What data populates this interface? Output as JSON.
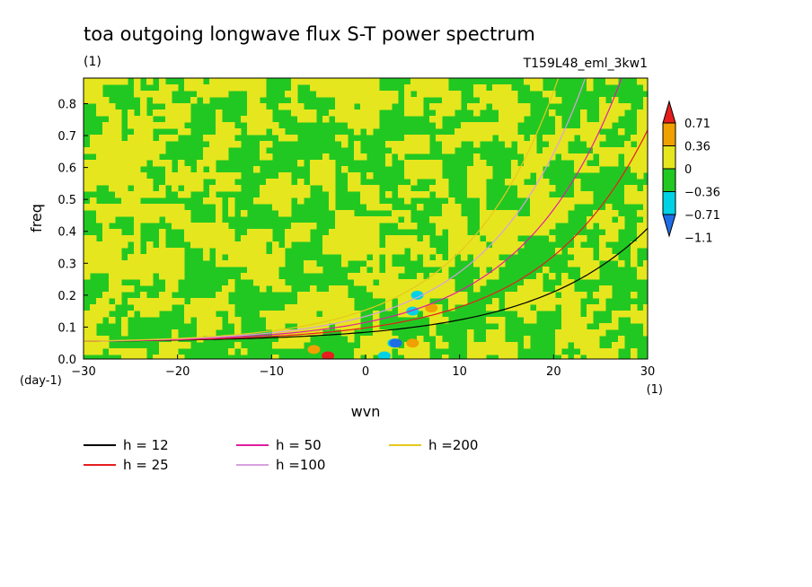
{
  "chart_data": {
    "type": "heatmap",
    "title": "toa outgoing longwave flux S-T power spectrum",
    "subtitle_left": "(1)",
    "subtitle_right": "T159L48_eml_3kw1",
    "xlabel": "wvn",
    "ylabel": "freq",
    "x_unit_label": "(1)",
    "y_unit_label": "(day-1)",
    "xlim": [
      -30,
      30
    ],
    "ylim": [
      0,
      0.88
    ],
    "x_ticks": [
      -30,
      -20,
      -10,
      0,
      10,
      20,
      30
    ],
    "x_tick_labels": [
      "−30",
      "−20",
      "−10",
      "0",
      "10",
      "20",
      "30"
    ],
    "y_ticks": [
      0.0,
      0.1,
      0.2,
      0.3,
      0.4,
      0.5,
      0.6,
      0.7,
      0.8
    ],
    "y_tick_labels": [
      "0.0",
      "0.1",
      "0.2",
      "0.3",
      "0.4",
      "0.5",
      "0.6",
      "0.7",
      "0.8"
    ],
    "colorbar": {
      "levels": [
        -1.1,
        -0.71,
        -0.36,
        0,
        0.36,
        0.71
      ],
      "level_labels": [
        "−1.1",
        "−0.71",
        "−0.36",
        "0",
        "0.36",
        "0.71"
      ],
      "colors": [
        "#1e6ee6",
        "#00d2e6",
        "#22c822",
        "#e6e61e",
        "#f0a000",
        "#e61e1e"
      ],
      "extend": "both"
    },
    "field": {
      "background_level_colors": [
        "#22c822",
        "#e6e61e"
      ],
      "anomalies": [
        {
          "x": 5.5,
          "y": 0.2,
          "color": "#00d2e6"
        },
        {
          "x": 5.0,
          "y": 0.15,
          "color": "#00d2e6"
        },
        {
          "x": 3.0,
          "y": 0.05,
          "color": "#00d2e6"
        },
        {
          "x": 3.2,
          "y": 0.05,
          "color": "#1e6ee6"
        },
        {
          "x": 2.0,
          "y": 0.01,
          "color": "#00d2e6"
        },
        {
          "x": 5.0,
          "y": 0.05,
          "color": "#f0a000"
        },
        {
          "x": 7.0,
          "y": 0.16,
          "color": "#f0a000"
        },
        {
          "x": -4.0,
          "y": 0.01,
          "color": "#e61e1e"
        },
        {
          "x": -5.5,
          "y": 0.03,
          "color": "#f0a000"
        }
      ]
    },
    "dispersion_curves": {
      "description": "Kelvin-type dispersion curves, freq grows with wvn",
      "series": [
        {
          "name": "h = 12",
          "h": 12,
          "color": "#000000"
        },
        {
          "name": "h = 25",
          "h": 25,
          "color": "#e61e1e"
        },
        {
          "name": "h = 50",
          "h": 50,
          "color": "#e01ea0"
        },
        {
          "name": "h =100",
          "h": 100,
          "color": "#d8a0e0"
        },
        {
          "name": "h =200",
          "h": 200,
          "color": "#e6c81e"
        }
      ]
    },
    "legend_placement": "below-plot"
  }
}
